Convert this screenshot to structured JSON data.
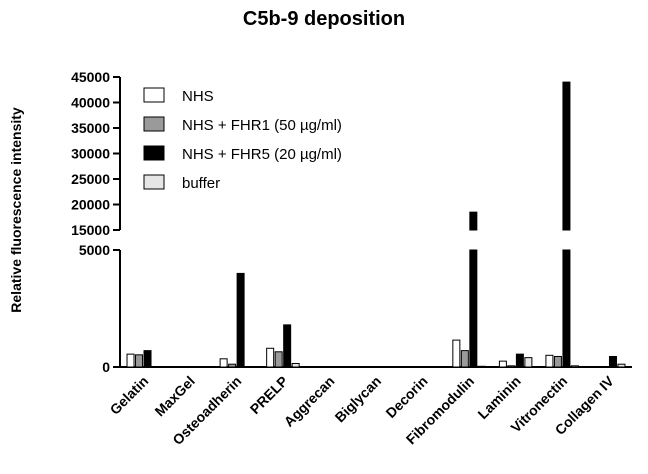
{
  "chart_data": {
    "type": "bar",
    "title": "C5b-9 deposition",
    "ylabel": "Relative fluorescence intensity",
    "xlabel": "",
    "categories": [
      "Gelatin",
      "MaxGel",
      "Osteoadherin",
      "PRELP",
      "Aggrecan",
      "Biglycan",
      "Decorin",
      "Fibromodulin",
      "Laminin",
      "Vitronectin",
      "Collagen IV"
    ],
    "series": [
      {
        "name": "NHS",
        "color": "#ffffff",
        "values": [
          550,
          0,
          350,
          800,
          0,
          0,
          0,
          1150,
          250,
          500,
          0
        ]
      },
      {
        "name": "NHS + FHR1 (50 µg/ml)",
        "color": "#9a9a9a",
        "values": [
          520,
          0,
          120,
          650,
          0,
          0,
          0,
          700,
          50,
          450,
          0
        ]
      },
      {
        "name": "NHS + FHR5 (20 µg/ml)",
        "color": "#000000",
        "values": [
          700,
          0,
          4000,
          1800,
          0,
          0,
          0,
          18500,
          550,
          44000,
          450
        ]
      },
      {
        "name": "buffer",
        "color": "#e6e6e6",
        "values": [
          0,
          0,
          0,
          150,
          0,
          0,
          0,
          30,
          400,
          50,
          120
        ]
      }
    ],
    "y_axis_segments": {
      "lower": {
        "ylim": [
          0,
          5000
        ],
        "ticks": [
          "0",
          "5000"
        ]
      },
      "upper": {
        "ylim": [
          15000,
          45000
        ],
        "ticks": [
          "15000",
          "20000",
          "25000",
          "30000",
          "35000",
          "40000",
          "45000"
        ]
      }
    },
    "axis_break": true,
    "legend_position": "top-left",
    "grid": false
  }
}
